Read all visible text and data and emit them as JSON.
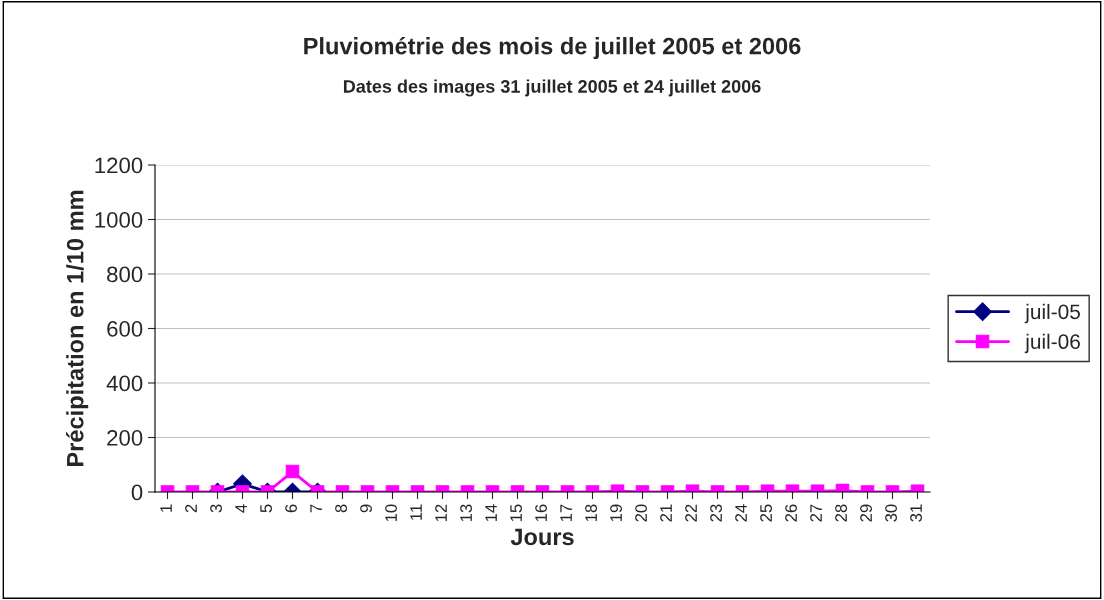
{
  "chart_data": {
    "type": "line",
    "title": "Pluviométrie des mois de juillet 2005 et 2006",
    "subtitle": "Dates des images 31 juillet 2005 et 24 juillet 2006",
    "xlabel": "Jours",
    "ylabel": "Précipitation en 1/10 mm",
    "categories": [
      "1",
      "2",
      "3",
      "4",
      "5",
      "6",
      "7",
      "8",
      "9",
      "10",
      "11",
      "12",
      "13",
      "14",
      "15",
      "16",
      "17",
      "18",
      "19",
      "20",
      "21",
      "22",
      "23",
      "24",
      "25",
      "26",
      "27",
      "28",
      "29",
      "30",
      "31"
    ],
    "series": [
      {
        "name": "juil-05",
        "color": "#000080",
        "marker": "diamond",
        "values": [
          null,
          null,
          0,
          30,
          0,
          0,
          0,
          null,
          null,
          null,
          null,
          null,
          null,
          null,
          null,
          null,
          null,
          null,
          null,
          null,
          null,
          null,
          null,
          null,
          null,
          null,
          null,
          null,
          null,
          null,
          null
        ]
      },
      {
        "name": "juil-06",
        "color": "#ff00ff",
        "marker": "square",
        "values": [
          0,
          0,
          0,
          0,
          0,
          75,
          0,
          0,
          0,
          0,
          0,
          0,
          0,
          0,
          0,
          0,
          0,
          0,
          3,
          0,
          0,
          3,
          0,
          0,
          3,
          3,
          3,
          5,
          0,
          0,
          3
        ]
      }
    ],
    "ylim": [
      0,
      1200
    ],
    "yticks": [
      0,
      200,
      400,
      600,
      800,
      1000,
      1200
    ],
    "grid": "y",
    "legend": "right"
  }
}
